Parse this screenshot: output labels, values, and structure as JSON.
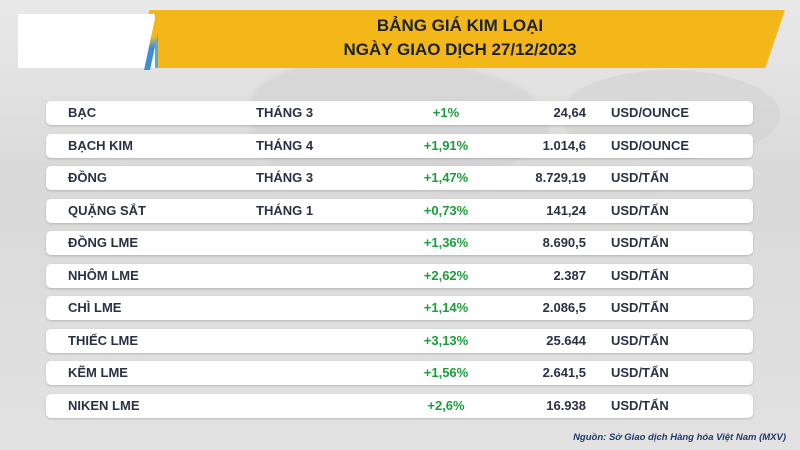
{
  "header": {
    "title_line1": "BẢNG GIÁ KIM LOẠI",
    "title_line2": "NGÀY GIAO DỊCH 27/12/2023"
  },
  "colors": {
    "accent": "#f3b71a",
    "positive": "#1a9e3a",
    "text": "#2a3142"
  },
  "rows": [
    {
      "name": "BẠC",
      "month": "THÁNG 3",
      "change": "+1%",
      "price": "24,64",
      "unit": "USD/OUNCE"
    },
    {
      "name": "BẠCH KIM",
      "month": "THÁNG 4",
      "change": "+1,91%",
      "price": "1.014,6",
      "unit": "USD/OUNCE"
    },
    {
      "name": "ĐỒNG",
      "month": "THÁNG 3",
      "change": "+1,47%",
      "price": "8.729,19",
      "unit": "USD/TẤN"
    },
    {
      "name": "QUẶNG SẮT",
      "month": "THÁNG 1",
      "change": "+0,73%",
      "price": "141,24",
      "unit": "USD/TẤN"
    },
    {
      "name": "ĐỒNG LME",
      "month": "",
      "change": "+1,36%",
      "price": "8.690,5",
      "unit": "USD/TẤN"
    },
    {
      "name": "NHÔM LME",
      "month": "",
      "change": "+2,62%",
      "price": "2.387",
      "unit": "USD/TẤN"
    },
    {
      "name": "CHÌ LME",
      "month": "",
      "change": "+1,14%",
      "price": "2.086,5",
      "unit": "USD/TẤN"
    },
    {
      "name": "THIẾC LME",
      "month": "",
      "change": "+3,13%",
      "price": "25.644",
      "unit": "USD/TẤN"
    },
    {
      "name": "KẼM LME",
      "month": "",
      "change": "+1,56%",
      "price": "2.641,5",
      "unit": "USD/TẤN"
    },
    {
      "name": "NIKEN LME",
      "month": "",
      "change": "+2,6%",
      "price": "16.938",
      "unit": "USD/TẤN"
    }
  ],
  "footer": {
    "source": "Nguồn: Sở Giao dịch Hàng hóa Việt Nam (MXV)"
  }
}
